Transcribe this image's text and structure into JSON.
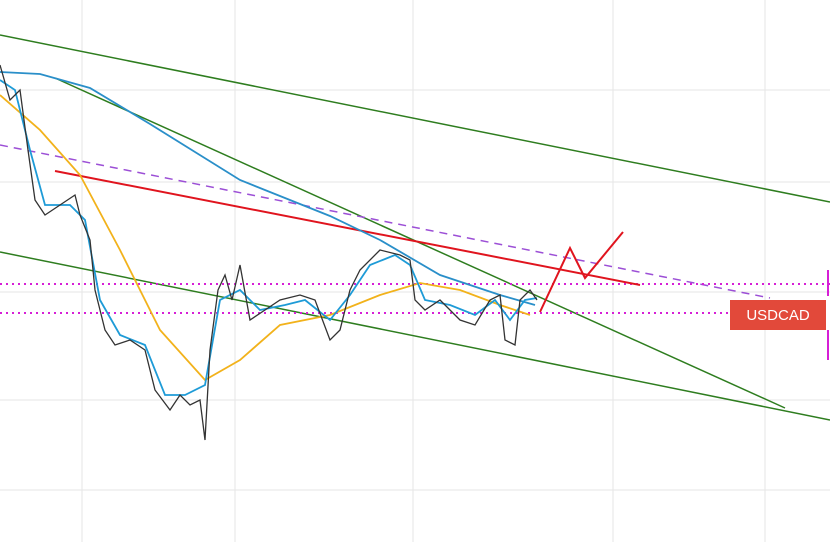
{
  "symbol_label": "USDCAD"
}
